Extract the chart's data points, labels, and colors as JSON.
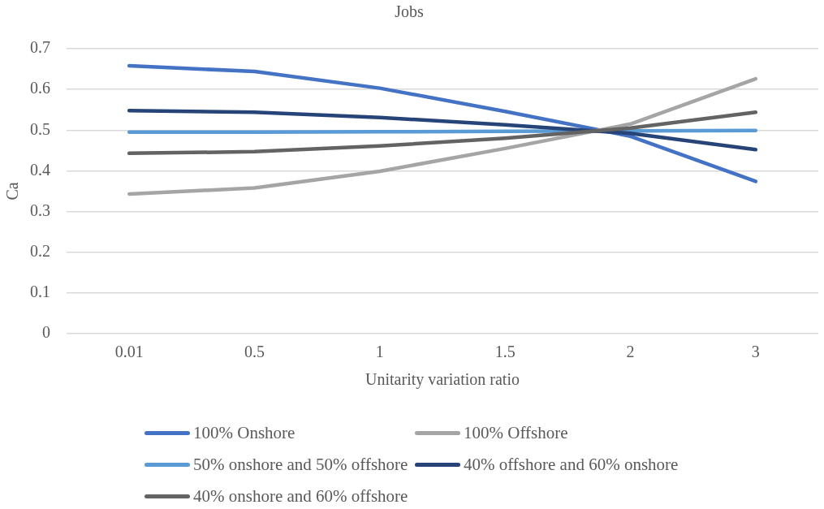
{
  "chart_data": {
    "type": "line",
    "title": "Jobs",
    "xlabel": "Unitarity variation ratio",
    "ylabel": "Ca",
    "categories": [
      "0.01",
      "0.5",
      "1",
      "1.5",
      "2",
      "3"
    ],
    "series": [
      {
        "name": "100% Onshore",
        "color": "#4472c4",
        "values": [
          0.658,
          0.644,
          0.603,
          0.546,
          0.485,
          0.374
        ]
      },
      {
        "name": "100% Offshore",
        "color": "#a5a5a5",
        "values": [
          0.343,
          0.358,
          0.399,
          0.455,
          0.515,
          0.626
        ]
      },
      {
        "name": "50% onshore and 50% offshore",
        "color": "#5b9bd5",
        "values": [
          0.495,
          0.495,
          0.496,
          0.497,
          0.498,
          0.499
        ]
      },
      {
        "name": "40% offshore and 60% onshore",
        "color": "#264478",
        "values": [
          0.548,
          0.544,
          0.531,
          0.513,
          0.492,
          0.452
        ]
      },
      {
        "name": "40% onshore and 60% offshore",
        "color": "#636363",
        "values": [
          0.443,
          0.447,
          0.461,
          0.48,
          0.505,
          0.544
        ]
      }
    ],
    "ylim": [
      0,
      0.7
    ],
    "yticks": [
      0,
      0.1,
      0.2,
      0.3,
      0.4,
      0.5,
      0.6,
      0.7
    ],
    "grid": "y",
    "legend": "bottom",
    "marker": "none",
    "line_style": "solid"
  }
}
